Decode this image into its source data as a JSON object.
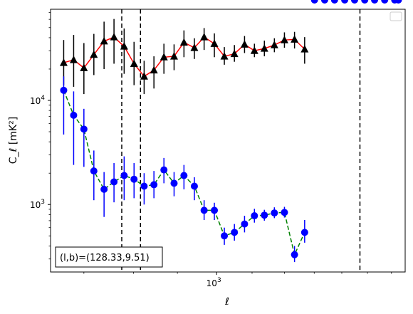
{
  "chart_data": {
    "type": "scatter",
    "xscale": "log",
    "yscale": "log",
    "xlabel": "ℓ",
    "ylabel": "C_ℓ [mK²]",
    "xlim": [
      640,
      1660
    ],
    "ylim": [
      225,
      75000
    ],
    "x_ticks": [
      {
        "value": 1000,
        "label": "10",
        "exp": "3"
      }
    ],
    "y_ticks": [
      {
        "value": 1000,
        "label": "10",
        "exp": "3"
      },
      {
        "value": 10000,
        "label": "10",
        "exp": "4"
      }
    ],
    "legend": {
      "position": "upper right",
      "entries": []
    },
    "annotation": "(l,b)=(128.33,9.51)",
    "vlines": [
      775,
      815,
      1470
    ],
    "series": [
      {
        "line_color": "#ff0000",
        "line_style": "solid",
        "marker": "triangle",
        "marker_color": "#000000",
        "errorbar_color": "#000000",
        "x": [
          663,
          681,
          700,
          719,
          739,
          759,
          780,
          801,
          823,
          845,
          868,
          892,
          916,
          942,
          967,
          994,
          1021,
          1049,
          1078,
          1107,
          1137,
          1168,
          1200,
          1233,
          1267,
          1301,
          1337,
          1373,
          1411,
          1449,
          1489,
          1529,
          1571,
          1614,
          1630
        ],
        "y": [
          23000,
          24500,
          20500,
          27500,
          37000,
          40500,
          33000,
          22500,
          17000,
          19500,
          26000,
          26500,
          36000,
          32000,
          40500,
          35000,
          26500,
          28000,
          34500,
          30000,
          31500,
          34000,
          38000,
          38500,
          31000,
          0,
          0,
          0,
          0,
          0,
          0,
          0,
          0,
          0,
          0
        ],
        "yerr_low": [
          9000,
          11000,
          9000,
          10000,
          17000,
          18000,
          15000,
          8500,
          5500,
          6500,
          8000,
          7000,
          10000,
          7000,
          10000,
          9000,
          4500,
          4500,
          6000,
          4000,
          5000,
          5000,
          6000,
          7000,
          8500,
          0,
          0,
          0,
          0,
          0,
          0,
          0,
          0,
          0,
          0
        ],
        "yerr_high": [
          15000,
          18000,
          15000,
          16000,
          20000,
          20000,
          16000,
          14000,
          7000,
          7000,
          9000,
          8000,
          11000,
          7500,
          9000,
          9000,
          6000,
          6000,
          7000,
          5000,
          6000,
          5500,
          7000,
          7000,
          9500,
          0,
          0,
          0,
          0,
          0,
          0,
          0,
          0,
          0,
          0
        ]
      },
      {
        "line_color": "#008000",
        "line_style": "dashed",
        "marker": "circle",
        "marker_color": "#0000ff",
        "errorbar_color": "#0000ff",
        "x": [
          663,
          681,
          700,
          719,
          739,
          759,
          780,
          801,
          823,
          845,
          868,
          892,
          916,
          942,
          967,
          994,
          1021,
          1049,
          1078,
          1107,
          1137,
          1168,
          1200,
          1233,
          1267,
          1301,
          1337,
          1373,
          1411,
          1449,
          1489,
          1529,
          1571,
          1614,
          1630
        ],
        "y": [
          12500,
          7200,
          5300,
          2100,
          1400,
          1650,
          1900,
          1750,
          1500,
          1550,
          2150,
          1600,
          1900,
          1500,
          880,
          880,
          500,
          540,
          650,
          780,
          790,
          830,
          840,
          330,
          540,
          0,
          0,
          0,
          0,
          0,
          0,
          0,
          0,
          0,
          0
        ],
        "yerr_low": [
          7800,
          4800,
          3000,
          1000,
          640,
          600,
          800,
          600,
          500,
          400,
          550,
          400,
          500,
          400,
          170,
          170,
          90,
          90,
          110,
          110,
          90,
          90,
          90,
          50,
          110,
          0,
          0,
          0,
          0,
          0,
          0,
          0,
          0,
          0,
          0
        ],
        "yerr_high": [
          4500,
          5000,
          3000,
          1200,
          650,
          850,
          1000,
          750,
          500,
          550,
          650,
          450,
          500,
          330,
          220,
          160,
          100,
          110,
          130,
          130,
          100,
          110,
          110,
          70,
          170,
          0,
          0,
          0,
          0,
          0,
          0,
          0,
          0,
          0,
          0
        ]
      }
    ]
  }
}
